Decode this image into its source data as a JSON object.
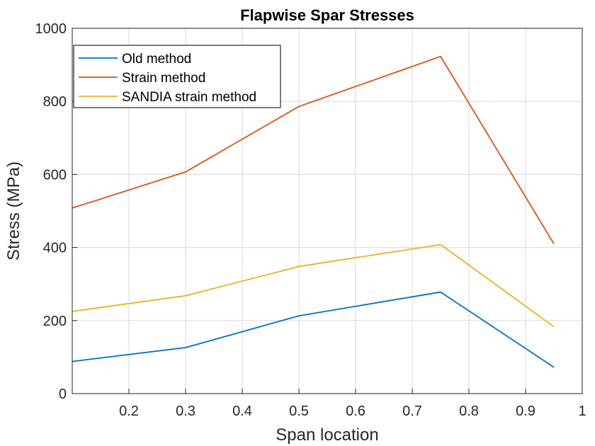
{
  "chart_data": {
    "type": "line",
    "title": "Flapwise Spar Stresses",
    "xlabel": "Span location",
    "ylabel": "Stress (MPa)",
    "xlim": [
      0.1,
      1
    ],
    "ylim": [
      0,
      1000
    ],
    "xticks": [
      "0.2",
      "0.3",
      "0.4",
      "0.5",
      "0.6",
      "0.7",
      "0.8",
      "0.9",
      "1"
    ],
    "yticks": [
      "0",
      "200",
      "400",
      "600",
      "800",
      "1000"
    ],
    "grid": true,
    "legend_position": "top-left",
    "x": [
      0.1,
      0.3,
      0.5,
      0.75,
      0.95
    ],
    "series": [
      {
        "name": "Old method",
        "color": "#0072BD",
        "values": [
          88,
          126,
          213,
          278,
          72
        ]
      },
      {
        "name": "Strain method",
        "color": "#D95319",
        "values": [
          508,
          607,
          786,
          923,
          410
        ]
      },
      {
        "name": "SANDIA strain method",
        "color": "#EDB120",
        "values": [
          225,
          268,
          348,
          408,
          183
        ]
      }
    ]
  }
}
